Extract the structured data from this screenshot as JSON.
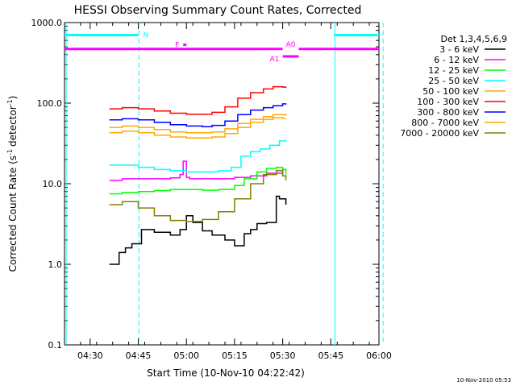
{
  "chart_data": {
    "type": "line",
    "title": "HESSI Observing Summary Count Rates, Corrected",
    "xlabel": "Start Time (10-Nov-10 04:22:42)",
    "ylabel_main": "Corrected Count Rate (s",
    "ylabel_unit": "detector",
    "ylabel_exp": "-1",
    "ylabel_close": ")",
    "yscale": "log",
    "ylim": [
      0.1,
      1000
    ],
    "y_ticks": [
      {
        "value": 0.1,
        "label": "0.1"
      },
      {
        "value": 1,
        "label": "1.0"
      },
      {
        "value": 10,
        "label": "10.0"
      },
      {
        "value": 100,
        "label": "100.0"
      },
      {
        "value": 1000,
        "label": "1000.0"
      }
    ],
    "xlim_min": [
      262,
      360
    ],
    "x_ticks": [
      {
        "value": 270,
        "label": "04:30"
      },
      {
        "value": 285,
        "label": "04:45"
      },
      {
        "value": 300,
        "label": "05:00"
      },
      {
        "value": 315,
        "label": "05:15"
      },
      {
        "value": 330,
        "label": "05:30"
      },
      {
        "value": 345,
        "label": "05:45"
      },
      {
        "value": 360,
        "label": "06:00"
      }
    ],
    "legend_title": "Det 1,3,4,5,6,9",
    "series": [
      {
        "name": "3 - 6 keV",
        "color": "#000000",
        "x": [
          276,
          277,
          278,
          279,
          281,
          283,
          286,
          290,
          295,
          298,
          300,
          302,
          305,
          308,
          312,
          315,
          318,
          320,
          322,
          325,
          328,
          329,
          331
        ],
        "y": [
          1.0,
          1.0,
          1.0,
          1.4,
          1.6,
          1.8,
          2.7,
          2.5,
          2.3,
          2.7,
          4.0,
          3.3,
          2.6,
          2.3,
          2.0,
          1.7,
          2.4,
          2.7,
          3.2,
          3.3,
          7.0,
          6.5,
          5.5
        ]
      },
      {
        "name": "6 - 12 keV",
        "color": "#ff00ff",
        "x": [
          276,
          280,
          285,
          290,
          295,
          298,
          299,
          300,
          301,
          305,
          310,
          315,
          320,
          325,
          330,
          331
        ],
        "y": [
          11,
          11.5,
          11.5,
          11.5,
          11.8,
          13,
          19,
          12,
          11.5,
          11.5,
          11.5,
          12,
          12.5,
          13.5,
          15,
          15
        ]
      },
      {
        "name": "12 - 25 keV",
        "color": "#00ff00",
        "x": [
          276,
          280,
          285,
          290,
          295,
          300,
          305,
          310,
          315,
          318,
          322,
          325,
          328,
          330,
          331
        ],
        "y": [
          7.5,
          7.8,
          8,
          8.2,
          8.5,
          8.5,
          8.3,
          8.5,
          9.5,
          11.5,
          14,
          15.5,
          16,
          15,
          13
        ]
      },
      {
        "name": "25 - 50 keV",
        "color": "#00ffff",
        "x": [
          276,
          280,
          285,
          290,
          295,
          300,
          305,
          310,
          314,
          317,
          320,
          323,
          326,
          329,
          331
        ],
        "y": [
          17,
          17,
          16,
          15,
          14.5,
          14,
          14,
          14.5,
          16,
          22,
          25,
          27,
          30,
          34,
          35
        ]
      },
      {
        "name": "50 - 100 keV",
        "color": "#ffaa00",
        "x": [
          276,
          280,
          285,
          290,
          295,
          300,
          305,
          308,
          312,
          316,
          320,
          324,
          327,
          330,
          331
        ],
        "y": [
          43,
          45,
          43,
          40,
          38,
          37,
          37,
          38,
          42,
          50,
          58,
          63,
          66,
          65,
          65
        ]
      },
      {
        "name": "100 - 300 keV",
        "color": "#ff0000",
        "x": [
          276,
          280,
          285,
          290,
          295,
          300,
          305,
          308,
          312,
          316,
          320,
          324,
          327,
          330,
          331
        ],
        "y": [
          85,
          88,
          85,
          80,
          75,
          73,
          73,
          77,
          90,
          115,
          135,
          150,
          160,
          158,
          155
        ]
      },
      {
        "name": "300 - 800 keV",
        "color": "#0000ff",
        "x": [
          276,
          280,
          285,
          290,
          295,
          300,
          305,
          308,
          312,
          316,
          320,
          324,
          327,
          330,
          331
        ],
        "y": [
          62,
          64,
          62,
          58,
          54,
          52,
          51,
          53,
          60,
          72,
          82,
          88,
          93,
          98,
          96
        ]
      },
      {
        "name": "800 - 7000 keV",
        "color": "#ffaa00",
        "x": [
          276,
          280,
          285,
          290,
          295,
          300,
          305,
          308,
          312,
          316,
          320,
          324,
          327,
          330,
          331
        ],
        "y": [
          50,
          52,
          50,
          47,
          44,
          43,
          43,
          44,
          48,
          56,
          63,
          68,
          72,
          72,
          70
        ]
      },
      {
        "name": "7000 - 20000 keV",
        "color": "#808000",
        "x": [
          276,
          278,
          280,
          285,
          290,
          295,
          300,
          305,
          310,
          315,
          320,
          324,
          328,
          330,
          331
        ],
        "y": [
          5.5,
          5.5,
          6,
          5,
          4,
          3.5,
          3.4,
          3.6,
          4.5,
          6.5,
          10,
          13,
          14.5,
          12.5,
          11
        ]
      }
    ],
    "flags": [
      {
        "label": "N",
        "color": "#00ffff",
        "y": 700,
        "segments": [
          [
            262,
            285
          ],
          [
            346,
            360
          ]
        ]
      },
      {
        "label": "F",
        "color": "#ff00ff",
        "y": 530,
        "segments": [
          [
            299,
            300
          ]
        ]
      },
      {
        "label": "",
        "color": "#ff00ff",
        "y": 470,
        "segments": [
          [
            262,
            330
          ],
          [
            335,
            360
          ]
        ]
      },
      {
        "label": "A0",
        "color": "#ff00ff",
        "y": 470,
        "segments": []
      },
      {
        "label": "A1",
        "color": "#ff00ff",
        "y": 380,
        "segments": [
          [
            330,
            335
          ]
        ]
      }
    ],
    "vlines_solid": [
      262.5,
      346.3
    ],
    "vlines_dashed": [
      285.2,
      361.3
    ],
    "grid": false,
    "legend_position": "right"
  },
  "footer": {
    "timestamp": "10-Nov-2010 05:53"
  }
}
